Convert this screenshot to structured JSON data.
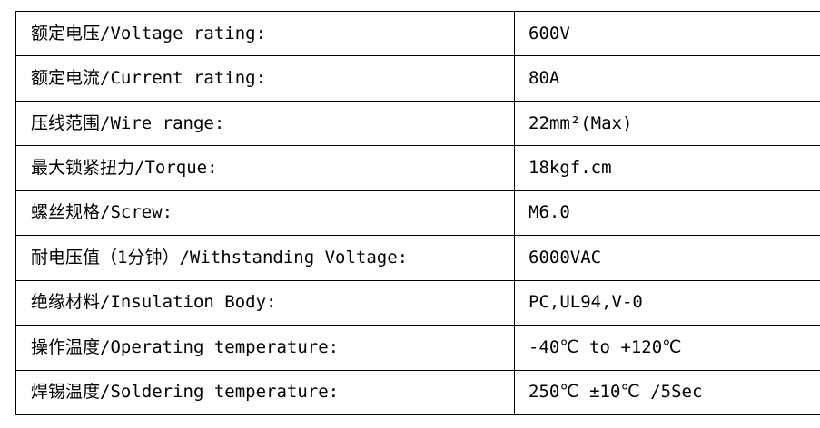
{
  "table": {
    "rows": [
      {
        "label": "额定电压/Voltage rating:",
        "value": "600V"
      },
      {
        "label": "额定电流/Current rating:",
        "value": "80A"
      },
      {
        "label": "压线范围/Wire range:",
        "value": "22mm²(Max)"
      },
      {
        "label": "最大锁紧扭力/Torque:",
        "value": "18kgf.cm"
      },
      {
        "label": "螺丝规格/Screw:",
        "value": "M6.0"
      },
      {
        "label": "耐电压值（1分钟）/Withstanding Voltage:",
        "value": "6000VAC"
      },
      {
        "label": "绝缘材料/Insulation Body:",
        "value": "PC,UL94,V-0"
      },
      {
        "label": "操作温度/Operating temperature:",
        "value": "-40℃ to +120℃"
      },
      {
        "label": "焊锡温度/Soldering temperature:",
        "value": "250℃ ±10℃ /5Sec"
      }
    ],
    "colors": {
      "border": "#000000",
      "text": "#000000",
      "background": "#ffffff"
    }
  }
}
